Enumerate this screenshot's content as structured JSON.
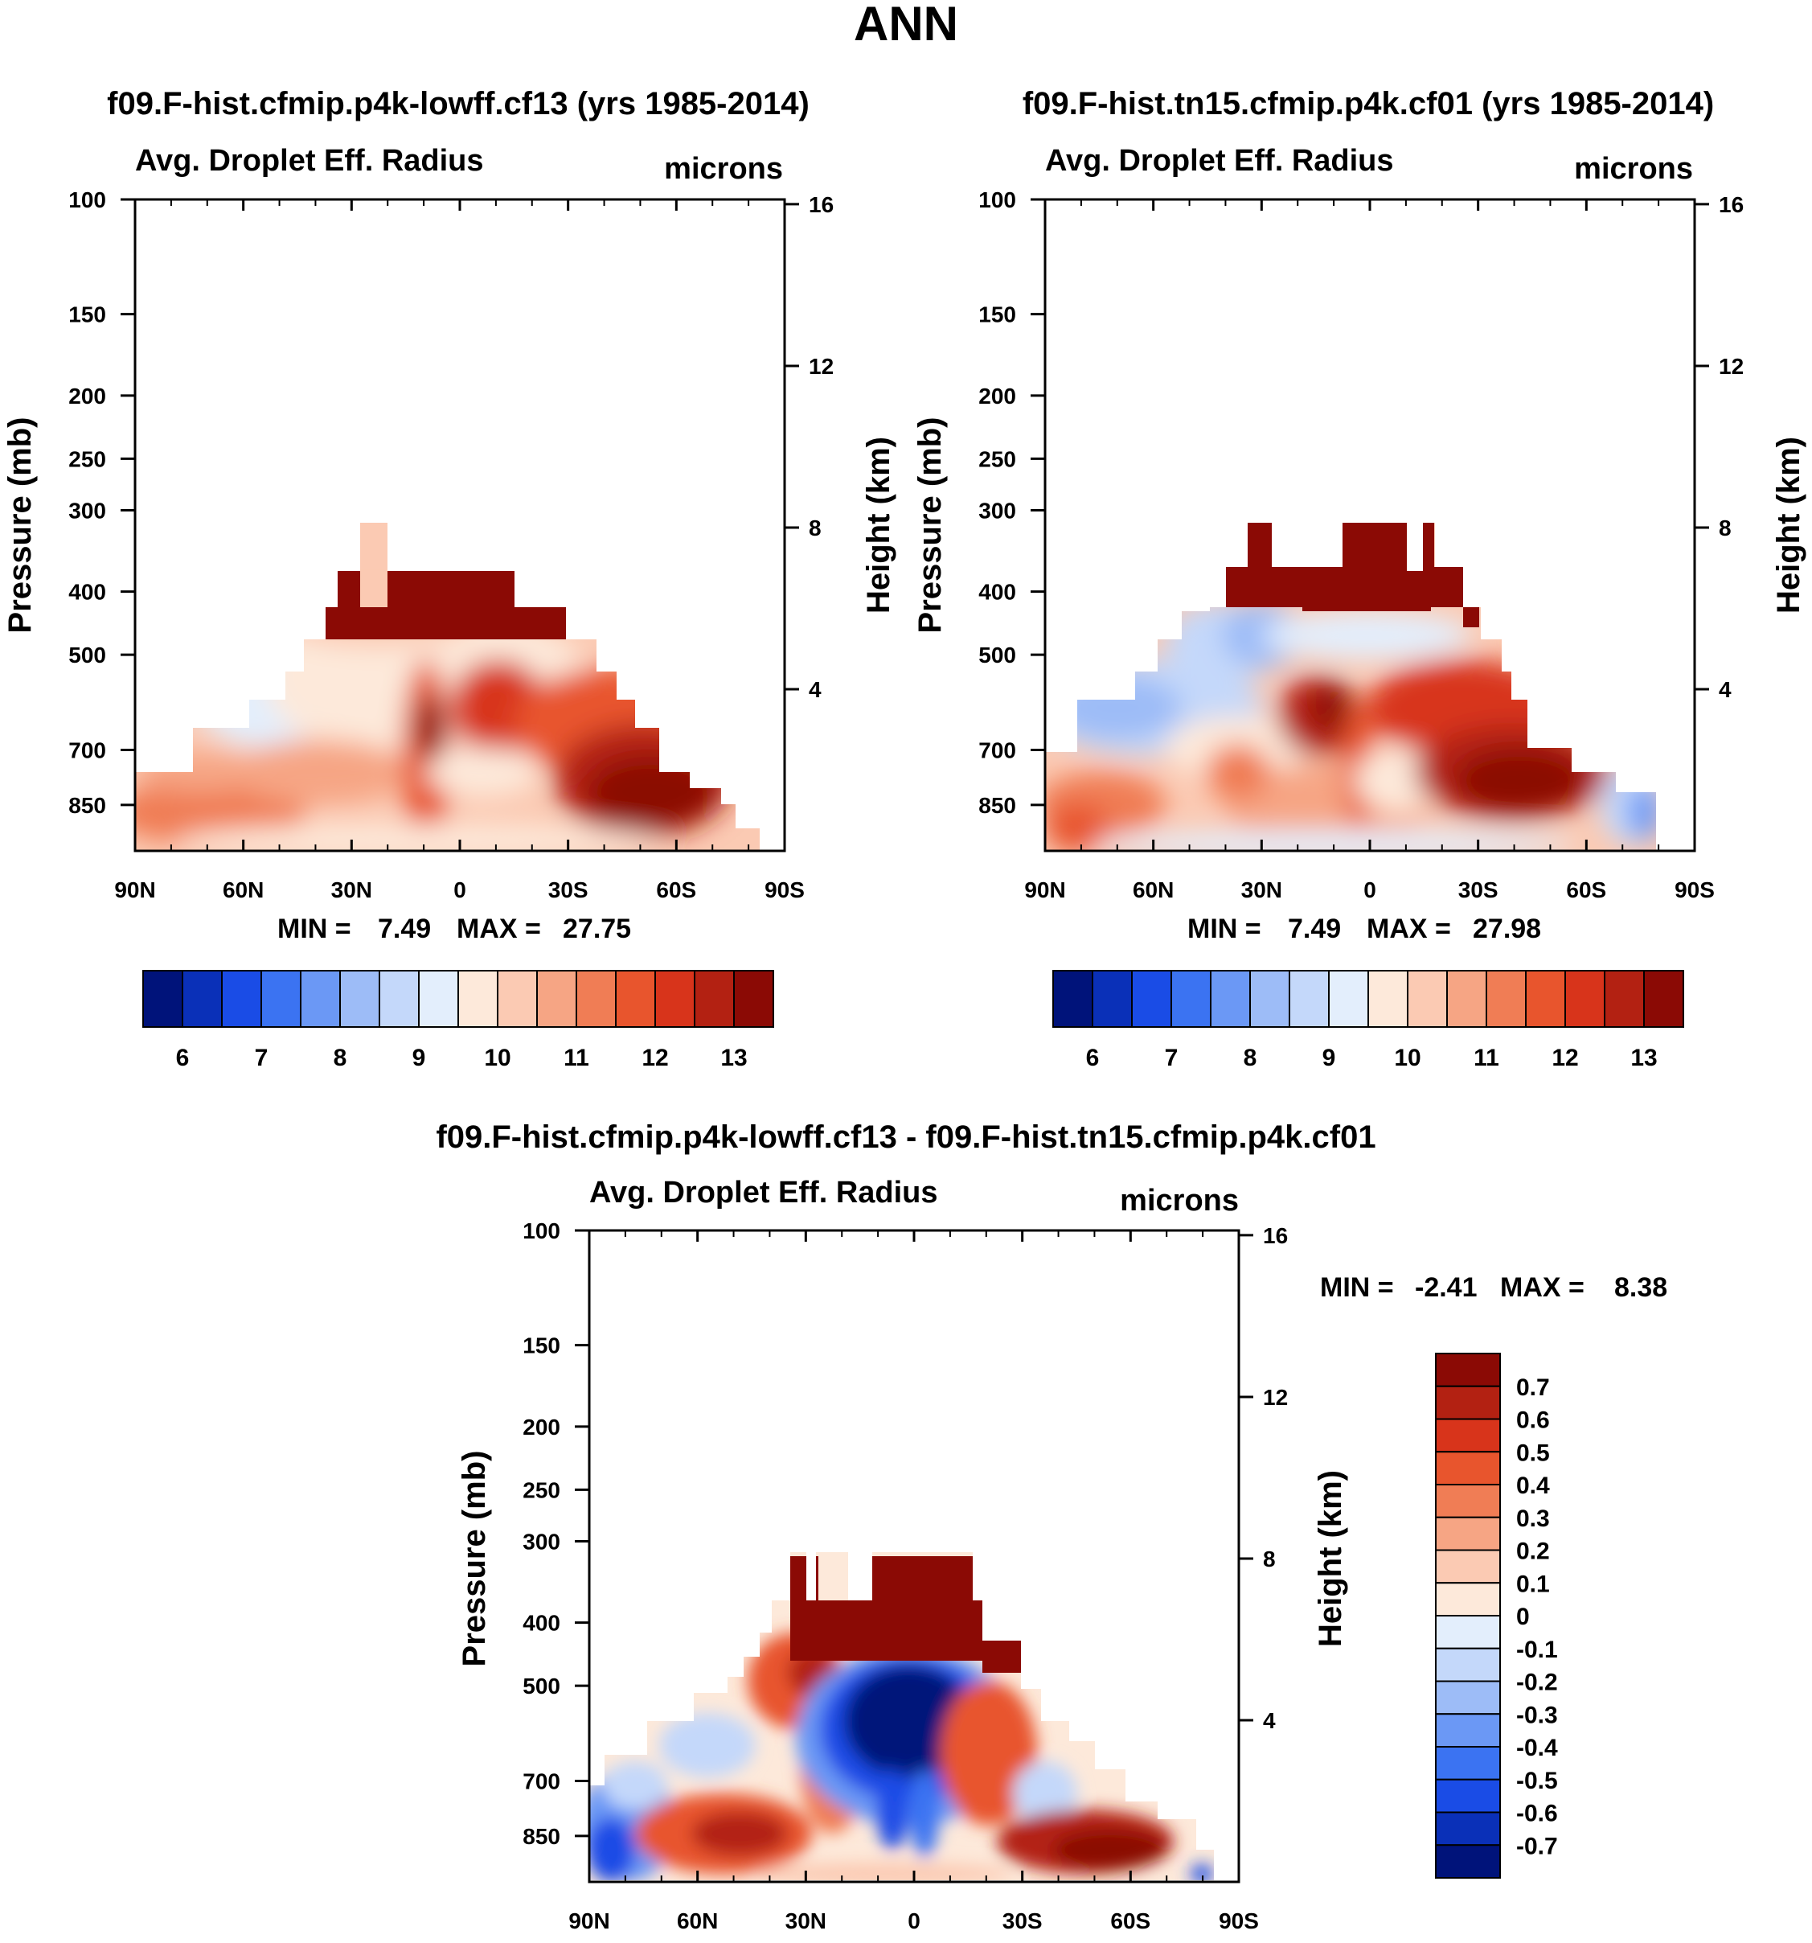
{
  "page_title": "ANN",
  "chart_data": [
    {
      "type": "heatmap",
      "title": "f09.F-hist.cfmip.p4k-lowff.cf13 (yrs 1985-2014)",
      "subtitle": "Avg. Droplet Eff. Radius",
      "units": "microns",
      "ylabel": "Pressure (mb)",
      "ylabel_right": "Height (km)",
      "x_ticks": [
        "90N",
        "60N",
        "30N",
        "0",
        "30S",
        "60S",
        "90S"
      ],
      "y_ticks": [
        "100",
        "150",
        "200",
        "250",
        "300",
        "400",
        "500",
        "700",
        "850"
      ],
      "y_ticks_right": [
        "16",
        "12",
        "8",
        "4"
      ],
      "stats": {
        "min_label": "MIN =",
        "min": "7.49",
        "max_label": "MAX =",
        "max": "27.75"
      },
      "colorbar": {
        "labels": [
          "6",
          "7",
          "8",
          "9",
          "10",
          "11",
          "12",
          "13"
        ],
        "colors": [
          "#00137a",
          "#0a30b8",
          "#1a4ce6",
          "#3b73f2",
          "#6b98f5",
          "#9dbcf7",
          "#c4d8fa",
          "#e3eefc",
          "#fde9da",
          "#fbcab3",
          "#f6a584",
          "#f07d55",
          "#e8552d",
          "#d8341b",
          "#b32112",
          "#8b0a05"
        ]
      },
      "field_max": "#8b0a05",
      "field_colors": [
        "#c4d8fa",
        "#e3eefc",
        "#fde9da",
        "#fbcab3",
        "#f6a584",
        "#f07d55",
        "#e8552d",
        "#d8341b",
        "#b32112",
        "#8b0a05"
      ],
      "field_summary": "Values mostly 10-13 microns near the surface, largest in the Southern Hemisphere mid-latitudes (30S-60S) around 700-850 mb; values >13 above ~400 mb in the tropics."
    },
    {
      "type": "heatmap",
      "title": "f09.F-hist.tn15.cfmip.p4k.cf01 (yrs 1985-2014)",
      "subtitle": "Avg. Droplet Eff. Radius",
      "units": "microns",
      "ylabel": "Pressure (mb)",
      "ylabel_right": "Height (km)",
      "x_ticks": [
        "90N",
        "60N",
        "30N",
        "0",
        "30S",
        "60S",
        "90S"
      ],
      "y_ticks": [
        "100",
        "150",
        "200",
        "250",
        "300",
        "400",
        "500",
        "700",
        "850"
      ],
      "y_ticks_right": [
        "16",
        "12",
        "8",
        "4"
      ],
      "stats": {
        "min_label": "MIN =",
        "min": "7.49",
        "max_label": "MAX =",
        "max": "27.98"
      },
      "colorbar": {
        "labels": [
          "6",
          "7",
          "8",
          "9",
          "10",
          "11",
          "12",
          "13"
        ],
        "colors": [
          "#00137a",
          "#0a30b8",
          "#1a4ce6",
          "#3b73f2",
          "#6b98f5",
          "#9dbcf7",
          "#c4d8fa",
          "#e3eefc",
          "#fde9da",
          "#fbcab3",
          "#f6a584",
          "#f07d55",
          "#e8552d",
          "#d8341b",
          "#b32112",
          "#8b0a05"
        ]
      },
      "field_summary": "Similar pattern to the first panel with slightly larger blue (8-10 micron) regions in the Northern Hemisphere mid-troposphere."
    },
    {
      "type": "heatmap",
      "title": "f09.F-hist.cfmip.p4k-lowff.cf13 - f09.F-hist.tn15.cfmip.p4k.cf01",
      "subtitle": "Avg. Droplet Eff. Radius",
      "units": "microns",
      "ylabel": "Pressure (mb)",
      "ylabel_right": "Height (km)",
      "x_ticks": [
        "90N",
        "60N",
        "30N",
        "0",
        "30S",
        "60S",
        "90S"
      ],
      "y_ticks": [
        "100",
        "150",
        "200",
        "250",
        "300",
        "400",
        "500",
        "700",
        "850"
      ],
      "y_ticks_right": [
        "16",
        "12",
        "8",
        "4"
      ],
      "stats": {
        "min_label": "MIN =",
        "min": "-2.41",
        "max_label": "MAX =",
        "max": "8.38"
      },
      "colorbar": {
        "labels": [
          "0.7",
          "0.6",
          "0.5",
          "0.4",
          "0.3",
          "0.2",
          "0.1",
          "0",
          "-0.1",
          "-0.2",
          "-0.3",
          "-0.4",
          "-0.5",
          "-0.6",
          "-0.7"
        ],
        "colors": [
          "#8b0a05",
          "#b32112",
          "#d8341b",
          "#e8552d",
          "#f07d55",
          "#f6a584",
          "#fbcab3",
          "#fde9da",
          "#e3eefc",
          "#c4d8fa",
          "#9dbcf7",
          "#6b98f5",
          "#3b73f2",
          "#1a4ce6",
          "#0a30b8",
          "#00137a"
        ]
      },
      "field_summary": "Strong negative differences (< -0.7) in the tropical mid-troposphere (~500-700 mb, 20N-20S); positive differences (> 0.7) above 400 mb and in SH mid-latitudes near the surface."
    }
  ]
}
